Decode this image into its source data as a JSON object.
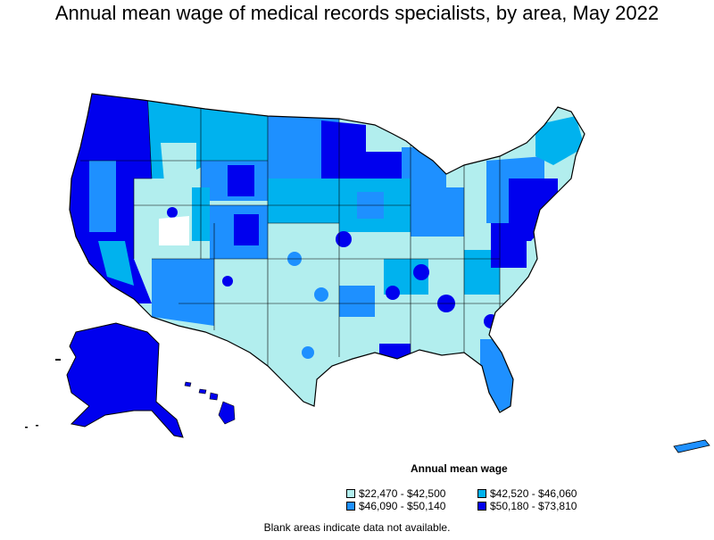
{
  "title": "Annual mean wage of medical records specialists, by area, May 2022",
  "legend": {
    "title": "Annual mean wage",
    "items": [
      {
        "label": "$22,470 - $42,500",
        "color": "#b2eeee"
      },
      {
        "label": "$42,520 - $46,060",
        "color": "#00b2ee"
      },
      {
        "label": "$46,090 - $50,140",
        "color": "#1e90ff"
      },
      {
        "label": "$50,180 - $73,810",
        "color": "#0000ee"
      }
    ]
  },
  "footnote": "Blank areas indicate data not available.",
  "colors": {
    "tier1": "#b2eeee",
    "tier2": "#00b2ee",
    "tier3": "#1e90ff",
    "tier4": "#0000ee",
    "no_data": "#ffffff",
    "border": "#000000"
  }
}
